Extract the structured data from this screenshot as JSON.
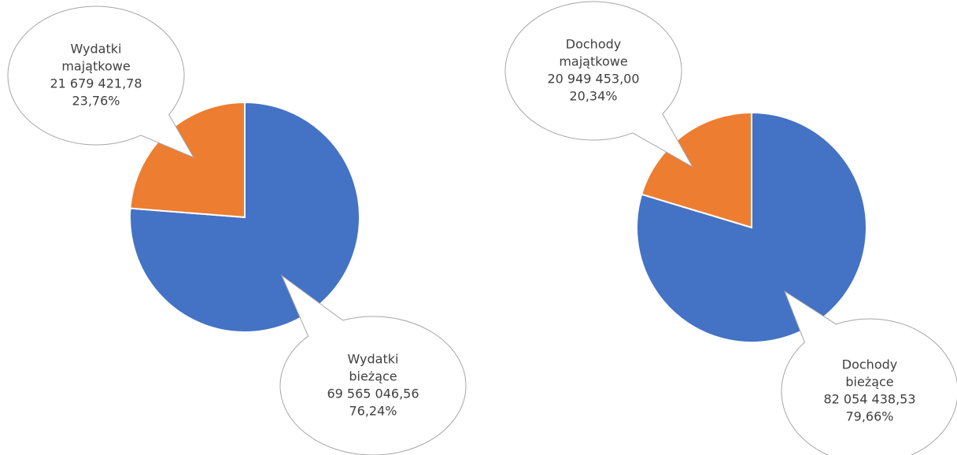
{
  "chart_data": [
    {
      "type": "pie",
      "categories": [
        "Wydatki bieżące",
        "Wydatki majątkowe"
      ],
      "values": [
        69565046.56,
        21679421.78
      ],
      "value_labels": [
        "69 565 046,56",
        "21 679 421,78"
      ],
      "percents": [
        76.24,
        23.76
      ],
      "percent_labels": [
        "76,24%",
        "23,76%"
      ],
      "colors": [
        "#4472c4",
        "#ed7d31"
      ]
    },
    {
      "type": "pie",
      "categories": [
        "Dochody bieżące",
        "Dochody majątkowe"
      ],
      "values": [
        82054438.53,
        20949453.0
      ],
      "value_labels": [
        "82 054 438,53",
        "20 949 453,00"
      ],
      "percents": [
        79.66,
        20.34
      ],
      "percent_labels": [
        "79,66%",
        "20,34%"
      ],
      "colors": [
        "#4472c4",
        "#ed7d31"
      ]
    }
  ]
}
